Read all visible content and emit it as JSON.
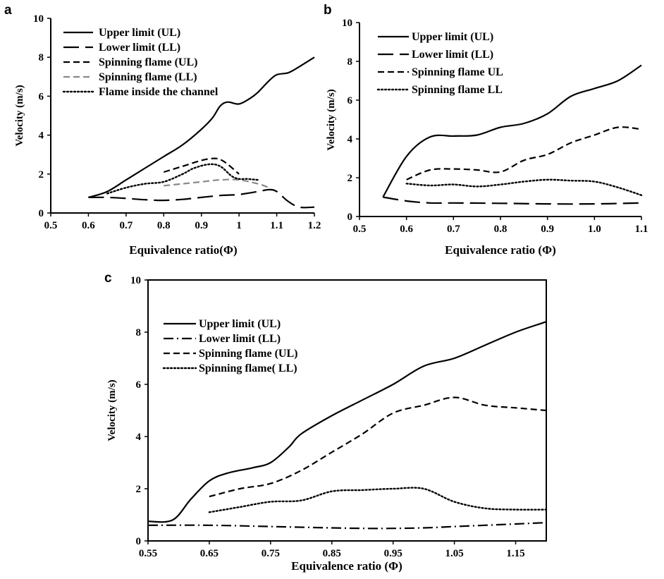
{
  "chart_data": [
    {
      "panel": "a",
      "type": "line",
      "xlabel": "Equivalence ratio(Φ)",
      "ylabel": "Velocity (m/s)",
      "xlim": [
        0.5,
        1.2
      ],
      "ylim": [
        0,
        10
      ],
      "xticks": [
        "0.5",
        "0.6",
        "0.7",
        "0.8",
        "0.9",
        "1",
        "1.1",
        "1.2"
      ],
      "yticks": [
        "0",
        "2",
        "4",
        "6",
        "8",
        "10"
      ],
      "legend": "top-left",
      "series": [
        {
          "name": "Upper limit (UL)",
          "style": "solid",
          "color": "#000000",
          "x": [
            0.6,
            0.65,
            0.7,
            0.75,
            0.8,
            0.85,
            0.9,
            0.93,
            0.95,
            0.97,
            1.0,
            1.03,
            1.05,
            1.08,
            1.1,
            1.13,
            1.15,
            1.2
          ],
          "y": [
            0.8,
            1.1,
            1.7,
            2.3,
            2.9,
            3.5,
            4.3,
            4.9,
            5.5,
            5.7,
            5.6,
            5.9,
            6.2,
            6.8,
            7.1,
            7.2,
            7.4,
            8.0
          ]
        },
        {
          "name": "Lower limit (LL)",
          "style": "longdash",
          "color": "#000000",
          "x": [
            0.6,
            0.65,
            0.7,
            0.75,
            0.8,
            0.85,
            0.9,
            0.95,
            1.0,
            1.05,
            1.08,
            1.1,
            1.13,
            1.16,
            1.2
          ],
          "y": [
            0.8,
            0.8,
            0.75,
            0.68,
            0.65,
            0.7,
            0.8,
            0.9,
            0.95,
            1.1,
            1.2,
            1.1,
            0.6,
            0.3,
            0.3
          ]
        },
        {
          "name": "Spinning flame (UL)",
          "style": "dash",
          "color": "#000000",
          "x": [
            0.8,
            0.85,
            0.9,
            0.93,
            0.95,
            0.97,
            1.0
          ],
          "y": [
            2.1,
            2.4,
            2.7,
            2.8,
            2.75,
            2.5,
            2.0
          ]
        },
        {
          "name": "Spinning flame (LL)",
          "style": "dash",
          "color": "#888888",
          "x": [
            0.8,
            0.85,
            0.9,
            0.95,
            1.0,
            1.05,
            1.08
          ],
          "y": [
            1.4,
            1.5,
            1.6,
            1.7,
            1.7,
            1.5,
            1.3
          ]
        },
        {
          "name": "Flame inside the channel",
          "style": "dot",
          "color": "#000000",
          "x": [
            0.65,
            0.7,
            0.75,
            0.8,
            0.85,
            0.88,
            0.92,
            0.95,
            0.98,
            1.0,
            1.02,
            1.05
          ],
          "y": [
            1.0,
            1.3,
            1.5,
            1.6,
            2.0,
            2.3,
            2.5,
            2.4,
            1.9,
            1.75,
            1.75,
            1.7
          ]
        }
      ]
    },
    {
      "panel": "b",
      "type": "line",
      "xlabel": "Equivalence ratio (Φ)",
      "ylabel": "Velocity (m/s)",
      "xlim": [
        0.5,
        1.1
      ],
      "ylim": [
        0,
        10
      ],
      "xticks": [
        "0.5",
        "0.6",
        "0.7",
        "0.8",
        "0.9",
        "1.0",
        "1.1"
      ],
      "yticks": [
        "0",
        "2",
        "4",
        "6",
        "8",
        "10"
      ],
      "legend": "top-left",
      "series": [
        {
          "name": "Upper limit (UL)",
          "style": "solid",
          "color": "#000000",
          "x": [
            0.55,
            0.6,
            0.65,
            0.7,
            0.75,
            0.8,
            0.85,
            0.9,
            0.95,
            1.0,
            1.05,
            1.1
          ],
          "y": [
            1.0,
            3.1,
            4.1,
            4.15,
            4.2,
            4.6,
            4.8,
            5.3,
            6.2,
            6.6,
            7.0,
            7.8
          ]
        },
        {
          "name": "Lower limit (LL)",
          "style": "longdash",
          "color": "#000000",
          "x": [
            0.55,
            0.6,
            0.65,
            0.7,
            0.8,
            0.9,
            1.0,
            1.1
          ],
          "y": [
            1.0,
            0.8,
            0.7,
            0.7,
            0.68,
            0.65,
            0.65,
            0.7
          ]
        },
        {
          "name": "Spinning flame UL",
          "style": "dash",
          "color": "#000000",
          "x": [
            0.6,
            0.65,
            0.7,
            0.75,
            0.8,
            0.85,
            0.9,
            0.95,
            1.0,
            1.05,
            1.1
          ],
          "y": [
            1.9,
            2.4,
            2.45,
            2.4,
            2.3,
            2.9,
            3.2,
            3.8,
            4.2,
            4.6,
            4.5
          ]
        },
        {
          "name": "Spinning flame LL",
          "style": "dot",
          "color": "#000000",
          "x": [
            0.6,
            0.65,
            0.7,
            0.75,
            0.8,
            0.85,
            0.9,
            0.95,
            1.0,
            1.05,
            1.1
          ],
          "y": [
            1.7,
            1.6,
            1.65,
            1.55,
            1.65,
            1.8,
            1.9,
            1.85,
            1.8,
            1.5,
            1.1
          ]
        }
      ]
    },
    {
      "panel": "c",
      "type": "line",
      "xlabel": "Equivalence ratio (Φ)",
      "ylabel": "Velocity (m/s)",
      "xlim": [
        0.55,
        1.2
      ],
      "ylim": [
        0,
        10
      ],
      "xticks": [
        "0.55",
        "0.65",
        "0.75",
        "0.85",
        "0.95",
        "1.05",
        "1.15"
      ],
      "yticks": [
        "0",
        "2",
        "4",
        "6",
        "8",
        "10"
      ],
      "legend": "top-left",
      "series": [
        {
          "name": "Upper limit (UL)",
          "style": "solid",
          "color": "#000000",
          "x": [
            0.55,
            0.59,
            0.62,
            0.65,
            0.68,
            0.72,
            0.75,
            0.78,
            0.8,
            0.85,
            0.9,
            0.95,
            1.0,
            1.05,
            1.1,
            1.15,
            1.2
          ],
          "y": [
            0.75,
            0.8,
            1.6,
            2.3,
            2.6,
            2.8,
            3.0,
            3.6,
            4.1,
            4.8,
            5.4,
            6.0,
            6.7,
            7.0,
            7.5,
            8.0,
            8.4
          ]
        },
        {
          "name": "Lower limit (LL)",
          "style": "dashdot",
          "color": "#000000",
          "x": [
            0.55,
            0.65,
            0.75,
            0.85,
            0.9,
            0.95,
            1.0,
            1.05,
            1.1,
            1.15,
            1.2
          ],
          "y": [
            0.6,
            0.6,
            0.55,
            0.5,
            0.48,
            0.48,
            0.5,
            0.55,
            0.6,
            0.65,
            0.7
          ]
        },
        {
          "name": "Spinning flame (UL)",
          "style": "dash",
          "color": "#000000",
          "x": [
            0.65,
            0.7,
            0.75,
            0.8,
            0.85,
            0.9,
            0.95,
            1.0,
            1.05,
            1.1,
            1.15,
            1.2
          ],
          "y": [
            1.7,
            2.0,
            2.2,
            2.7,
            3.4,
            4.1,
            4.9,
            5.2,
            5.5,
            5.2,
            5.1,
            5.0
          ]
        },
        {
          "name": "Spinning flame( LL)",
          "style": "dot",
          "color": "#000000",
          "x": [
            0.65,
            0.7,
            0.75,
            0.8,
            0.85,
            0.9,
            0.95,
            1.0,
            1.05,
            1.1,
            1.15,
            1.2
          ],
          "y": [
            1.1,
            1.3,
            1.5,
            1.55,
            1.9,
            1.95,
            2.0,
            2.0,
            1.5,
            1.25,
            1.2,
            1.2
          ]
        }
      ]
    }
  ]
}
